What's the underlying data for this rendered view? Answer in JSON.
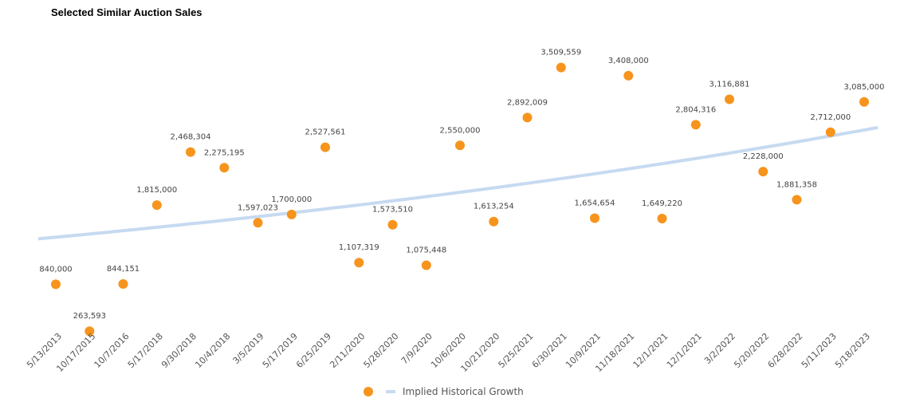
{
  "chart_data": {
    "type": "scatter",
    "title": "Selected Similar Auction Sales",
    "xlabel": "",
    "ylabel": "",
    "ylim": [
      0,
      4000000
    ],
    "grid": false,
    "categories": [
      "5/13/2013",
      "10/17/2015",
      "10/7/2016",
      "5/17/2018",
      "9/30/2018",
      "10/4/2018",
      "3/5/2019",
      "5/17/2019",
      "6/25/2019",
      "2/11/2020",
      "5/28/2020",
      "7/9/2020",
      "10/6/2020",
      "10/21/2020",
      "5/25/2021",
      "6/30/2021",
      "10/9/2021",
      "11/18/2021",
      "12/1/2021",
      "12/1/2021",
      "3/2/2022",
      "5/20/2022",
      "6/28/2022",
      "5/11/2023",
      "5/18/2023"
    ],
    "values": [
      840000,
      263593,
      844151,
      1815000,
      2468304,
      2275195,
      1597023,
      1700000,
      2527561,
      1107319,
      1573510,
      1075448,
      2550000,
      1613254,
      2892009,
      3509559,
      1654654,
      3408000,
      1649220,
      2804316,
      3116881,
      2228000,
      1881358,
      2712000,
      3085000
    ],
    "value_labels": [
      "840,000",
      "263,593",
      "844,151",
      "1,815,000",
      "2,468,304",
      "2,275,195",
      "1,597,023",
      "1,700,000",
      "2,527,561",
      "1,107,319",
      "1,573,510",
      "1,075,448",
      "2,550,000",
      "1,613,254",
      "2,892,009",
      "3,509,559",
      "1,654,654",
      "3,408,000",
      "1,649,220",
      "2,804,316",
      "3,116,881",
      "2,228,000",
      "1,881,358",
      "2,712,000",
      "3,085,000"
    ],
    "trend": {
      "name": "Implied Historical Growth",
      "start_value": 1400000,
      "end_value": 2770000
    },
    "legend": {
      "placement": "bottom-center",
      "series_marker": "",
      "trend_label": "Implied Historical Growth"
    },
    "colors": {
      "point": "#F7941D",
      "trend": "#C6DAF1",
      "text": "#444444"
    }
  }
}
